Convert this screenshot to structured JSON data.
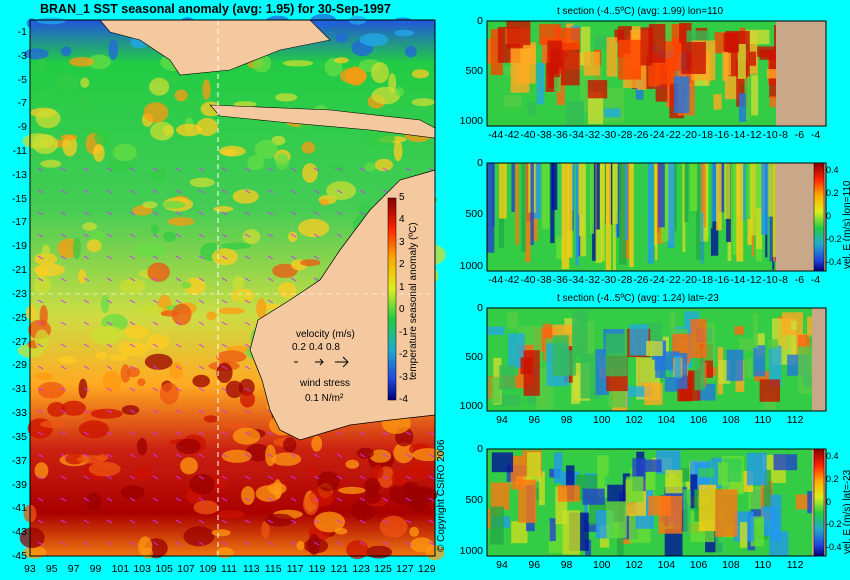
{
  "main_map": {
    "title": "BRAN_1  SST seasonal anomaly  (avg: 1.95)  for 30-Sep-1997",
    "lat_labels": [
      "-1",
      "-3",
      "-5",
      "-7",
      "-9",
      "-11",
      "-13",
      "-15",
      "-17",
      "-19",
      "-21",
      "-23",
      "-25",
      "-27",
      "-29",
      "-31",
      "-33",
      "-35",
      "-37",
      "-39",
      "-41",
      "-43",
      "-45"
    ],
    "lon_labels": [
      "93",
      "95",
      "97",
      "99",
      "101",
      "103",
      "105",
      "107",
      "109",
      "111",
      "113",
      "115",
      "117",
      "119",
      "121",
      "123",
      "125",
      "127",
      "129"
    ],
    "colorbar_label": "temperature seasonal anomaly (ºC)",
    "colorbar_ticks": [
      "5",
      "4",
      "3",
      "2",
      "1",
      "0",
      "-1",
      "-2",
      "-3",
      "-4"
    ],
    "velocity_label": "velocity (m/s)",
    "velocity_scale": [
      "0.2",
      "0.4",
      "0.8"
    ],
    "wind_label": "wind stress",
    "wind_value": "0.1 N/m²",
    "copyright": "© Copyright CSIRO 2006",
    "colors": {
      "land": "#f4c9a0",
      "background": "#00ffff"
    }
  },
  "panels": [
    {
      "id": "t-lon",
      "title": "t section (-4..5ºC) (avg: 1.99) lon=110",
      "y_ticks": [
        "0",
        "500",
        "1000"
      ],
      "x_ticks": [
        "-44",
        "-42",
        "-40",
        "-38",
        "-36",
        "-34",
        "-32",
        "-30",
        "-28",
        "-26",
        "-24",
        "-22",
        "-20",
        "-18",
        "-16",
        "-14",
        "-12",
        "-10",
        "-8",
        "-6",
        "-4"
      ],
      "side_label": "",
      "colorbar_ticks": []
    },
    {
      "id": "v-lon",
      "title": "",
      "y_ticks": [
        "0",
        "500",
        "1000"
      ],
      "x_ticks": [
        "-44",
        "-42",
        "-40",
        "-38",
        "-36",
        "-34",
        "-32",
        "-30",
        "-28",
        "-26",
        "-24",
        "-22",
        "-20",
        "-18",
        "-16",
        "-14",
        "-12",
        "-10",
        "-8",
        "-6",
        "-4"
      ],
      "side_label": "vel. E (m/s) lon=110",
      "colorbar_ticks": [
        "0.4",
        "0.2",
        "0",
        "-0.2",
        "-0.4"
      ]
    },
    {
      "id": "t-lat",
      "title": "t section (-4..5ºC) (avg: 1.24) lat=-23",
      "y_ticks": [
        "0",
        "500",
        "1000"
      ],
      "x_ticks": [
        "94",
        "96",
        "98",
        "100",
        "102",
        "104",
        "106",
        "108",
        "110",
        "112"
      ],
      "side_label": "",
      "colorbar_ticks": []
    },
    {
      "id": "v-lat",
      "title": "",
      "y_ticks": [
        "0",
        "500",
        "1000"
      ],
      "x_ticks": [
        "94",
        "96",
        "98",
        "100",
        "102",
        "104",
        "106",
        "108",
        "110",
        "112"
      ],
      "side_label": "vel. E (m/s) lat=-23",
      "colorbar_ticks": [
        "0.4",
        "0.2",
        "0",
        "-0.2",
        "-0.4"
      ]
    }
  ],
  "chart_data": [
    {
      "type": "heatmap",
      "title": "BRAN_1  SST seasonal anomaly  (avg: 1.95)  for 30-Sep-1997",
      "xlabel": "",
      "ylabel": "",
      "xlim": [
        93,
        130
      ],
      "ylim": [
        -45,
        0
      ],
      "colorbar_range": [
        -4,
        5
      ],
      "average": 1.95,
      "grid": false
    },
    {
      "type": "heatmap",
      "title": "t section (-4..5ºC) (avg: 1.99) lon=110",
      "xlim": [
        -45,
        -3
      ],
      "ylim": [
        1050,
        0
      ],
      "colorbar_range": [
        -4,
        5
      ],
      "average": 1.99
    },
    {
      "type": "heatmap",
      "title": "",
      "side_label": "vel. E (m/s) lon=110",
      "xlim": [
        -45,
        -3
      ],
      "ylim": [
        1050,
        0
      ],
      "colorbar_range": [
        -0.4,
        0.4
      ]
    },
    {
      "type": "heatmap",
      "title": "t section (-4..5ºC) (avg: 1.24) lat=-23",
      "xlim": [
        93,
        114
      ],
      "ylim": [
        1050,
        0
      ],
      "colorbar_range": [
        -4,
        5
      ],
      "average": 1.24
    },
    {
      "type": "heatmap",
      "title": "",
      "side_label": "vel. E (m/s) lat=-23",
      "xlim": [
        93,
        114
      ],
      "ylim": [
        1050,
        0
      ],
      "colorbar_range": [
        -0.4,
        0.4
      ]
    }
  ]
}
